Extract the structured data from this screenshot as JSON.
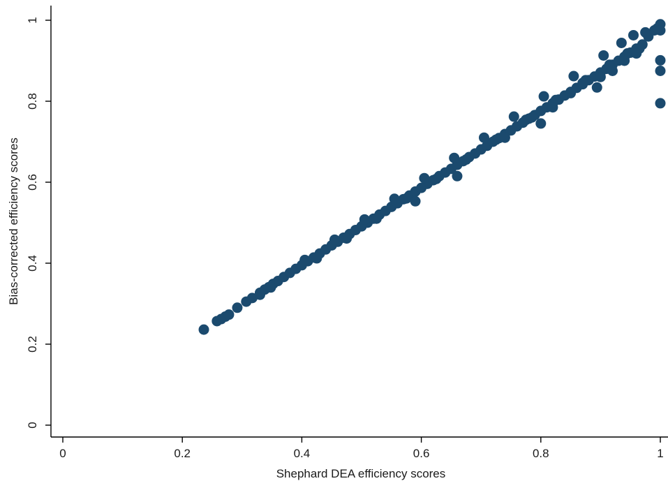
{
  "chart_data": {
    "type": "scatter",
    "title": "",
    "xlabel": "Shephard DEA efficiency scores",
    "ylabel": "Bias-corrected efficiency scores",
    "xlim": [
      0,
      1
    ],
    "ylim": [
      0,
      1
    ],
    "xticks": [
      "0",
      "0.2",
      "0.4",
      "0.6",
      "0.8",
      "1"
    ],
    "yticks": [
      "0",
      "0.2",
      "0.4",
      "0.6",
      "0.8",
      "1"
    ],
    "grid": false,
    "legend": "none",
    "marker_color": "#1b4a6e",
    "series": [
      {
        "points": [
          [
            0.236,
            0.236
          ],
          [
            0.258,
            0.257
          ],
          [
            0.265,
            0.262
          ],
          [
            0.272,
            0.268
          ],
          [
            0.278,
            0.273
          ],
          [
            0.292,
            0.29
          ],
          [
            0.307,
            0.305
          ],
          [
            0.317,
            0.314
          ],
          [
            0.33,
            0.327
          ],
          [
            0.338,
            0.335
          ],
          [
            0.345,
            0.341
          ],
          [
            0.352,
            0.349
          ],
          [
            0.36,
            0.356
          ],
          [
            0.37,
            0.366
          ],
          [
            0.38,
            0.376
          ],
          [
            0.39,
            0.386
          ],
          [
            0.4,
            0.395
          ],
          [
            0.41,
            0.405
          ],
          [
            0.42,
            0.414
          ],
          [
            0.43,
            0.424
          ],
          [
            0.44,
            0.434
          ],
          [
            0.45,
            0.444
          ],
          [
            0.46,
            0.453
          ],
          [
            0.47,
            0.463
          ],
          [
            0.48,
            0.472
          ],
          [
            0.49,
            0.482
          ],
          [
            0.5,
            0.491
          ],
          [
            0.51,
            0.5
          ],
          [
            0.52,
            0.51
          ],
          [
            0.53,
            0.52
          ],
          [
            0.54,
            0.529
          ],
          [
            0.55,
            0.539
          ],
          [
            0.56,
            0.548
          ],
          [
            0.57,
            0.558
          ],
          [
            0.58,
            0.567
          ],
          [
            0.59,
            0.577
          ],
          [
            0.6,
            0.586
          ],
          [
            0.61,
            0.596
          ],
          [
            0.62,
            0.605
          ],
          [
            0.63,
            0.615
          ],
          [
            0.64,
            0.624
          ],
          [
            0.65,
            0.633
          ],
          [
            0.66,
            0.643
          ],
          [
            0.67,
            0.652
          ],
          [
            0.68,
            0.662
          ],
          [
            0.69,
            0.671
          ],
          [
            0.7,
            0.681
          ],
          [
            0.71,
            0.69
          ],
          [
            0.72,
            0.7
          ],
          [
            0.73,
            0.709
          ],
          [
            0.74,
            0.719
          ],
          [
            0.75,
            0.728
          ],
          [
            0.76,
            0.738
          ],
          [
            0.77,
            0.747
          ],
          [
            0.78,
            0.757
          ],
          [
            0.79,
            0.766
          ],
          [
            0.8,
            0.776
          ],
          [
            0.81,
            0.785
          ],
          [
            0.82,
            0.795
          ],
          [
            0.83,
            0.804
          ],
          [
            0.84,
            0.814
          ],
          [
            0.85,
            0.823
          ],
          [
            0.86,
            0.833
          ],
          [
            0.87,
            0.842
          ],
          [
            0.88,
            0.852
          ],
          [
            0.89,
            0.861
          ],
          [
            0.9,
            0.871
          ],
          [
            0.91,
            0.88
          ],
          [
            0.92,
            0.89
          ],
          [
            0.93,
            0.9
          ],
          [
            0.94,
            0.91
          ],
          [
            0.95,
            0.92
          ],
          [
            0.96,
            0.93
          ],
          [
            0.97,
            0.94
          ],
          [
            0.98,
            0.96
          ],
          [
            0.99,
            0.975
          ],
          [
            0.995,
            0.98
          ],
          [
            1.0,
            0.99
          ],
          [
            0.405,
            0.408
          ],
          [
            0.455,
            0.458
          ],
          [
            0.505,
            0.508
          ],
          [
            0.555,
            0.559
          ],
          [
            0.605,
            0.61
          ],
          [
            0.655,
            0.66
          ],
          [
            0.705,
            0.71
          ],
          [
            0.755,
            0.762
          ],
          [
            0.805,
            0.812
          ],
          [
            0.855,
            0.862
          ],
          [
            0.905,
            0.913
          ],
          [
            0.935,
            0.944
          ],
          [
            0.955,
            0.963
          ],
          [
            0.975,
            0.97
          ],
          [
            0.425,
            0.412
          ],
          [
            0.475,
            0.461
          ],
          [
            0.525,
            0.51
          ],
          [
            0.575,
            0.56
          ],
          [
            0.625,
            0.608
          ],
          [
            0.675,
            0.656
          ],
          [
            0.725,
            0.705
          ],
          [
            0.775,
            0.754
          ],
          [
            0.825,
            0.803
          ],
          [
            0.875,
            0.852
          ],
          [
            0.915,
            0.89
          ],
          [
            0.945,
            0.918
          ],
          [
            0.965,
            0.93
          ],
          [
            0.33,
            0.322
          ],
          [
            0.348,
            0.34
          ],
          [
            0.59,
            0.553
          ],
          [
            0.66,
            0.615
          ],
          [
            0.74,
            0.71
          ],
          [
            0.785,
            0.76
          ],
          [
            0.8,
            0.745
          ],
          [
            0.82,
            0.785
          ],
          [
            0.85,
            0.82
          ],
          [
            0.87,
            0.845
          ],
          [
            0.9,
            0.86
          ],
          [
            0.92,
            0.875
          ],
          [
            0.94,
            0.9
          ],
          [
            0.96,
            0.918
          ],
          [
            0.894,
            0.834
          ],
          [
            1.0,
            0.901
          ],
          [
            1.0,
            0.875
          ],
          [
            1.0,
            0.795
          ],
          [
            1.0,
            0.975
          ]
        ]
      }
    ]
  }
}
